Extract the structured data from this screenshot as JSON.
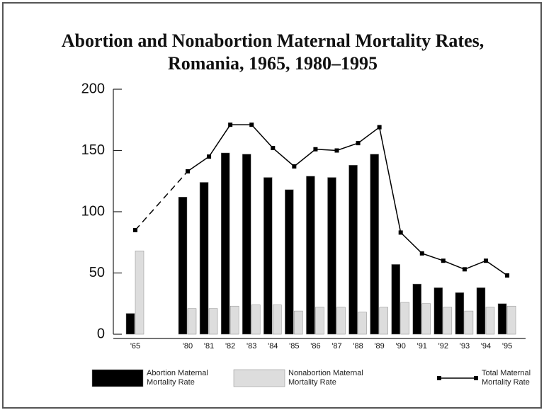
{
  "chart_data": {
    "type": "bar",
    "title": "Abortion and Nonabortion Maternal Mortality Rates, Romania, 1965, 1980–1995",
    "categories": [
      "'65",
      "'80",
      "'81",
      "'82",
      "'83",
      "'84",
      "'85",
      "'86",
      "'87",
      "'88",
      "'89",
      "'90",
      "'91",
      "'92",
      "'93",
      "'94",
      "'95"
    ],
    "series": [
      {
        "name": "Abortion Maternal Mortality Rate",
        "color": "#000000",
        "type": "bar",
        "values": [
          17,
          112,
          124,
          148,
          147,
          128,
          118,
          129,
          128,
          138,
          147,
          57,
          41,
          38,
          34,
          38,
          25
        ]
      },
      {
        "name": "Nonabortion Maternal Mortality Rate",
        "color": "#dddddd",
        "type": "bar",
        "values": [
          68,
          21,
          21,
          23,
          24,
          24,
          19,
          22,
          22,
          18,
          22,
          26,
          25,
          22,
          19,
          22,
          23
        ]
      },
      {
        "name": "Total Maternal Mortality Rate",
        "color": "#000000",
        "type": "line",
        "values": [
          85,
          133,
          145,
          171,
          171,
          152,
          137,
          151,
          150,
          156,
          169,
          83,
          66,
          60,
          53,
          60,
          48
        ]
      }
    ],
    "ylim": [
      0,
      200
    ],
    "yticks": [
      0,
      50,
      100,
      150,
      200
    ],
    "grid": false,
    "legend": "bottom"
  }
}
